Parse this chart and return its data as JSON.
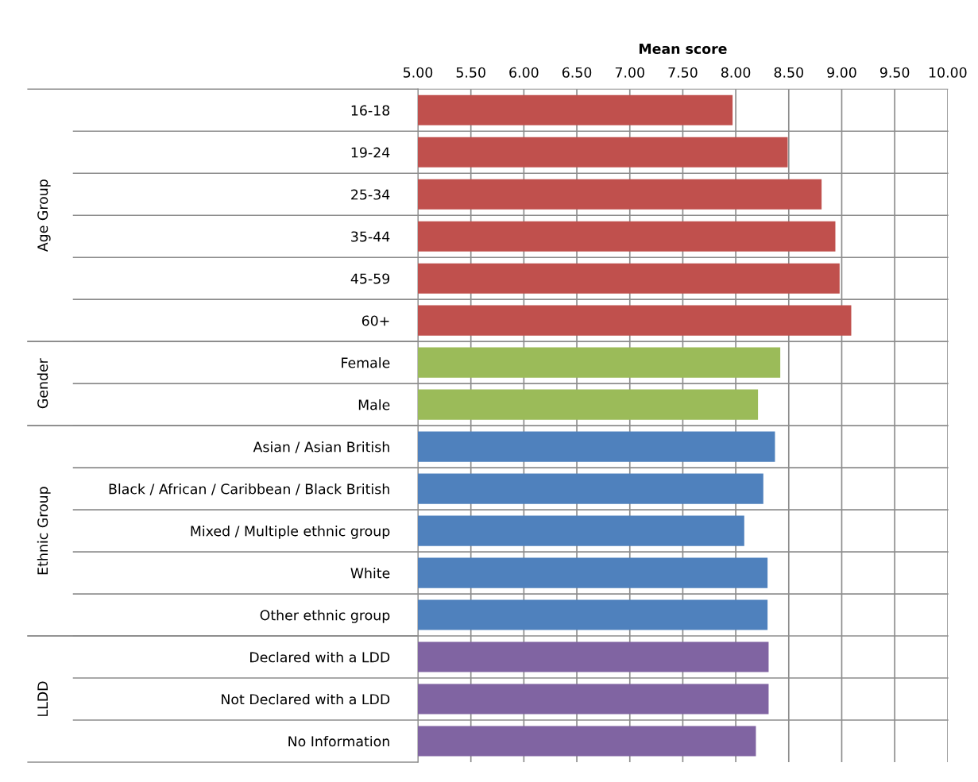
{
  "chart_data": {
    "type": "bar",
    "orientation": "horizontal",
    "xlabel": "Mean score",
    "categories": [
      "16-18",
      "19-24",
      "25-34",
      "35-44",
      "45-59",
      "60+",
      "Female",
      "Male",
      "Asian / Asian British",
      "Black / African / Caribbean / Black British",
      "Mixed / Multiple ethnic group",
      "White",
      "Other ethnic group",
      "Declared with a LDD",
      "Not Declared with a LDD",
      "No Information"
    ],
    "series": [
      {
        "color": "#c0504d",
        "values": [
          7.97,
          8.49,
          8.81,
          8.94,
          8.98,
          9.09,
          null,
          null,
          null,
          null,
          null,
          null,
          null,
          null,
          null,
          null
        ]
      },
      {
        "color": "#9bbb59",
        "values": [
          null,
          null,
          null,
          null,
          null,
          null,
          8.42,
          8.21,
          null,
          null,
          null,
          null,
          null,
          null,
          null,
          null
        ]
      },
      {
        "color": "#4f81bd",
        "values": [
          null,
          null,
          null,
          null,
          null,
          null,
          null,
          null,
          8.37,
          8.26,
          8.08,
          8.3,
          8.3,
          null,
          null,
          null
        ]
      },
      {
        "color": "#8064a2",
        "values": [
          null,
          null,
          null,
          null,
          null,
          null,
          null,
          null,
          null,
          null,
          null,
          null,
          null,
          8.31,
          8.31,
          8.19
        ]
      }
    ],
    "annotations": [
      "Age Group",
      "Gender",
      "Ethnic Group",
      "LLDD"
    ],
    "xlim": [
      5,
      10
    ],
    "xticks": [
      {
        "value": 5,
        "label": "5.00"
      },
      {
        "value": 5.5,
        "label": "5.50"
      },
      {
        "value": 6,
        "label": "6.00"
      },
      {
        "value": 6.5,
        "label": "6.50"
      },
      {
        "value": 7,
        "label": "7.00"
      },
      {
        "value": 7.5,
        "label": "7.50"
      },
      {
        "value": 8,
        "label": "8.00"
      },
      {
        "value": 8.5,
        "label": "8.50"
      },
      {
        "value": 9,
        "label": "9.00"
      },
      {
        "value": 9.5,
        "label": "9.50"
      },
      {
        "value": 10,
        "label": "10.00"
      }
    ],
    "grid": "x",
    "legend": false
  }
}
